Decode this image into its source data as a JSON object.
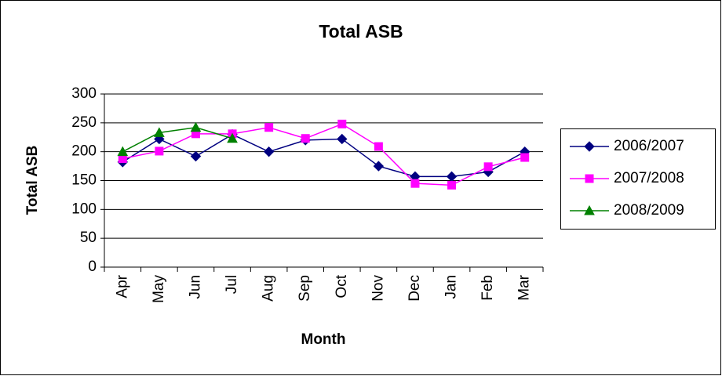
{
  "chart_data": {
    "type": "line",
    "title": "Total ASB",
    "x_label": "Month",
    "y_label": "Total ASB",
    "categories": [
      "Apr",
      "May",
      "Jun",
      "Jul",
      "Aug",
      "Sep",
      "Oct",
      "Nov",
      "Dec",
      "Jan",
      "Feb",
      "Mar"
    ],
    "series": [
      {
        "name": "2006/2007",
        "color": "#000080",
        "marker": "diamond",
        "values": [
          182,
          222,
          192,
          230,
          200,
          220,
          222,
          175,
          157,
          157,
          165,
          200
        ]
      },
      {
        "name": "2007/2008",
        "color": "#ff00ff",
        "marker": "square",
        "values": [
          188,
          201,
          231,
          231,
          242,
          223,
          248,
          209,
          145,
          142,
          174,
          190
        ]
      },
      {
        "name": "2008/2009",
        "color": "#008000",
        "marker": "triangle",
        "values": [
          200,
          233,
          242,
          223,
          null,
          null,
          null,
          null,
          null,
          null,
          null,
          null
        ]
      }
    ],
    "ylim": [
      0,
      300
    ],
    "yticks": [
      0,
      50,
      100,
      150,
      200,
      250,
      300
    ],
    "grid": true,
    "legend": "right"
  }
}
